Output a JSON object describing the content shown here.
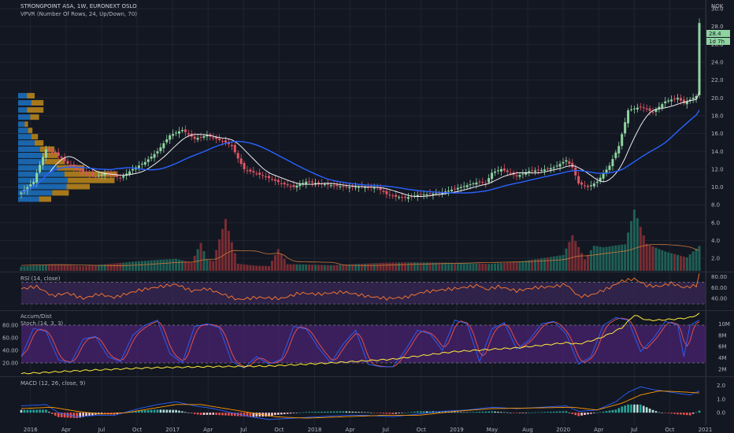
{
  "header": {
    "symbol": "STRONGPOINT ASA, 1W, EURONEXT OSLO",
    "vpvr": "VPVR (Number Of Rows, 24, Up/Down, 70)",
    "currency": "NOK",
    "last_price": "28.4",
    "countdown": "1d 7h"
  },
  "panes": {
    "rsi_title": "RSI (14, close)",
    "accum_title": "Accum/Dist",
    "stoch_title": "Stoch (14, 3, 3)",
    "macd_title": "MACD (12, 26, close, 9)"
  },
  "colors": {
    "background": "#131722",
    "up": "#26a69a",
    "down": "#ef5350",
    "up_candle": "#8fd4a0",
    "down_candle": "#e05565",
    "sma_fast": "#ffffff",
    "sma_slow": "#2962ff",
    "rsi_line": "#ff7a2e",
    "rsi_band": "#3c2a5a",
    "stoch_k": "#2962ff",
    "stoch_d": "#ef5350",
    "stoch_band": "#4a2370",
    "accum": "#ffeb3b",
    "macd_line": "#2962ff",
    "signal_line": "#ff9800",
    "vpvr_up": "#1e88e5",
    "vpvr_down": "#e6a21a"
  },
  "chart_data": [
    {
      "type": "candlestick",
      "pane": "price",
      "title": "STRONGPOINT ASA, 1W, EURONEXT OSLO",
      "x_ticks": [
        "2016",
        "Apr",
        "Jul",
        "Oct",
        "2017",
        "Apr",
        "Jul",
        "Oct",
        "2018",
        "Apr",
        "Jul",
        "Oct",
        "2019",
        "May",
        "Aug",
        "2020",
        "Apr",
        "Jul",
        "Oct",
        "2021"
      ],
      "y_ticks": [
        2.0,
        4.0,
        6.0,
        8.0,
        10.0,
        12.0,
        14.0,
        16.0,
        18.0,
        20.0,
        22.0,
        24.0,
        26.0,
        28.0,
        30.0
      ],
      "ylim": [
        0.6,
        30.8
      ],
      "close_anchors": [
        [
          0,
          9.4
        ],
        [
          4,
          10.6
        ],
        [
          6,
          12.5
        ],
        [
          8,
          14.2
        ],
        [
          11,
          13.8
        ],
        [
          15,
          12.6
        ],
        [
          19,
          11.8
        ],
        [
          24,
          11.2
        ],
        [
          28,
          11.6
        ],
        [
          32,
          11.0
        ],
        [
          36,
          12.0
        ],
        [
          40,
          12.8
        ],
        [
          44,
          14.0
        ],
        [
          48,
          15.8
        ],
        [
          52,
          16.4
        ],
        [
          56,
          15.4
        ],
        [
          60,
          15.8
        ],
        [
          63,
          15.4
        ],
        [
          66,
          15.0
        ],
        [
          68,
          14.6
        ],
        [
          70,
          13.2
        ],
        [
          72,
          12.0
        ],
        [
          76,
          11.5
        ],
        [
          80,
          11.0
        ],
        [
          84,
          10.4
        ],
        [
          88,
          10.0
        ],
        [
          92,
          10.6
        ],
        [
          96,
          10.4
        ],
        [
          100,
          10.2
        ],
        [
          105,
          10.0
        ],
        [
          110,
          10.0
        ],
        [
          115,
          9.9
        ],
        [
          118,
          9.2
        ],
        [
          121,
          8.9
        ],
        [
          124,
          8.8
        ],
        [
          128,
          9.1
        ],
        [
          132,
          9.2
        ],
        [
          136,
          9.4
        ],
        [
          140,
          9.8
        ],
        [
          144,
          10.2
        ],
        [
          148,
          10.6
        ],
        [
          150,
          10.4
        ],
        [
          152,
          11.6
        ],
        [
          155,
          12.0
        ],
        [
          160,
          11.2
        ],
        [
          164,
          11.8
        ],
        [
          168,
          11.9
        ],
        [
          172,
          12.2
        ],
        [
          176,
          13.0
        ],
        [
          178,
          12.2
        ],
        [
          180,
          10.4
        ],
        [
          183,
          10.0
        ],
        [
          186,
          10.6
        ],
        [
          190,
          12.4
        ],
        [
          193,
          14.6
        ],
        [
          196,
          18.6
        ],
        [
          200,
          19.0
        ],
        [
          204,
          18.4
        ],
        [
          208,
          19.6
        ],
        [
          212,
          20.0
        ],
        [
          214,
          19.4
        ],
        [
          216,
          19.8
        ],
        [
          218,
          20.2
        ],
        [
          219,
          28.4
        ]
      ],
      "volume_anchors": [
        [
          0,
          0.8
        ],
        [
          10,
          1.0
        ],
        [
          20,
          0.6
        ],
        [
          30,
          0.9
        ],
        [
          40,
          1.2
        ],
        [
          50,
          1.5
        ],
        [
          55,
          1.1
        ],
        [
          58,
          3.8
        ],
        [
          60,
          1.6
        ],
        [
          62,
          1.4
        ],
        [
          66,
          8.0
        ],
        [
          70,
          1.2
        ],
        [
          80,
          0.8
        ],
        [
          83,
          3.5
        ],
        [
          86,
          1.0
        ],
        [
          100,
          0.7
        ],
        [
          120,
          1.0
        ],
        [
          140,
          1.2
        ],
        [
          160,
          1.4
        ],
        [
          175,
          2.0
        ],
        [
          178,
          4.4
        ],
        [
          182,
          1.4
        ],
        [
          185,
          3.0
        ],
        [
          188,
          2.8
        ],
        [
          195,
          3.2
        ],
        [
          198,
          7.5
        ],
        [
          202,
          3.4
        ],
        [
          208,
          2.6
        ],
        [
          215,
          2.0
        ],
        [
          219,
          4.0
        ]
      ],
      "volume_scale_max": 12.0,
      "vpvr_levels": [
        {
          "price": 8.6,
          "up": 38,
          "down": 22
        },
        {
          "price": 9.3,
          "up": 62,
          "down": 30
        },
        {
          "price": 10.0,
          "up": 88,
          "down": 42
        },
        {
          "price": 10.7,
          "up": 90,
          "down": 85
        },
        {
          "price": 11.4,
          "up": 84,
          "down": 95
        },
        {
          "price": 12.1,
          "up": 70,
          "down": 50
        },
        {
          "price": 12.8,
          "up": 48,
          "down": 36
        },
        {
          "price": 13.5,
          "up": 44,
          "down": 28
        },
        {
          "price": 14.2,
          "up": 40,
          "down": 26
        },
        {
          "price": 14.9,
          "up": 30,
          "down": 16
        },
        {
          "price": 15.6,
          "up": 24,
          "down": 12
        },
        {
          "price": 16.3,
          "up": 18,
          "down": 8
        },
        {
          "price": 17.0,
          "up": 12,
          "down": 6
        },
        {
          "price": 17.8,
          "up": 22,
          "down": 16
        },
        {
          "price": 18.6,
          "up": 16,
          "down": 30
        },
        {
          "price": 19.4,
          "up": 24,
          "down": 22
        },
        {
          "price": 20.2,
          "up": 16,
          "down": 14
        }
      ]
    },
    {
      "type": "line",
      "pane": "rsi",
      "title": "RSI (14, close)",
      "y_ticks": [
        40.0,
        60.0,
        80.0
      ],
      "ylim": [
        20,
        85
      ],
      "bands": [
        30,
        70
      ],
      "anchors": [
        [
          0,
          58
        ],
        [
          5,
          62
        ],
        [
          10,
          45
        ],
        [
          15,
          50
        ],
        [
          20,
          40
        ],
        [
          25,
          48
        ],
        [
          30,
          42
        ],
        [
          38,
          55
        ],
        [
          45,
          62
        ],
        [
          50,
          66
        ],
        [
          55,
          54
        ],
        [
          60,
          58
        ],
        [
          66,
          46
        ],
        [
          70,
          38
        ],
        [
          76,
          42
        ],
        [
          84,
          40
        ],
        [
          90,
          50
        ],
        [
          96,
          48
        ],
        [
          104,
          52
        ],
        [
          112,
          44
        ],
        [
          118,
          40
        ],
        [
          124,
          42
        ],
        [
          130,
          52
        ],
        [
          136,
          56
        ],
        [
          140,
          58
        ],
        [
          148,
          64
        ],
        [
          150,
          56
        ],
        [
          154,
          62
        ],
        [
          160,
          54
        ],
        [
          166,
          60
        ],
        [
          172,
          62
        ],
        [
          176,
          66
        ],
        [
          180,
          44
        ],
        [
          184,
          46
        ],
        [
          190,
          60
        ],
        [
          194,
          72
        ],
        [
          198,
          76
        ],
        [
          202,
          64
        ],
        [
          206,
          62
        ],
        [
          210,
          68
        ],
        [
          214,
          60
        ],
        [
          218,
          64
        ],
        [
          219,
          84
        ]
      ]
    },
    {
      "type": "line",
      "pane": "stoch",
      "title": "Stoch (14, 3, 3)",
      "y_ticks": [
        20.0,
        40.0,
        60.0,
        80.0
      ],
      "ylim": [
        0,
        100
      ],
      "bands": [
        20,
        80
      ],
      "k_anchors": [
        [
          0,
          30
        ],
        [
          4,
          75
        ],
        [
          8,
          70
        ],
        [
          12,
          25
        ],
        [
          16,
          20
        ],
        [
          20,
          58
        ],
        [
          24,
          62
        ],
        [
          28,
          30
        ],
        [
          32,
          22
        ],
        [
          36,
          64
        ],
        [
          40,
          80
        ],
        [
          44,
          88
        ],
        [
          48,
          35
        ],
        [
          52,
          20
        ],
        [
          56,
          78
        ],
        [
          60,
          82
        ],
        [
          64,
          76
        ],
        [
          68,
          22
        ],
        [
          72,
          12
        ],
        [
          76,
          30
        ],
        [
          80,
          18
        ],
        [
          84,
          26
        ],
        [
          88,
          78
        ],
        [
          92,
          74
        ],
        [
          96,
          44
        ],
        [
          100,
          20
        ],
        [
          104,
          50
        ],
        [
          108,
          72
        ],
        [
          112,
          18
        ],
        [
          116,
          14
        ],
        [
          120,
          14
        ],
        [
          124,
          40
        ],
        [
          128,
          72
        ],
        [
          132,
          66
        ],
        [
          136,
          40
        ],
        [
          140,
          88
        ],
        [
          144,
          82
        ],
        [
          148,
          22
        ],
        [
          152,
          74
        ],
        [
          156,
          84
        ],
        [
          160,
          42
        ],
        [
          164,
          56
        ],
        [
          168,
          82
        ],
        [
          172,
          86
        ],
        [
          176,
          66
        ],
        [
          180,
          18
        ],
        [
          184,
          30
        ],
        [
          188,
          80
        ],
        [
          192,
          92
        ],
        [
          196,
          88
        ],
        [
          200,
          38
        ],
        [
          204,
          58
        ],
        [
          208,
          86
        ],
        [
          212,
          80
        ],
        [
          214,
          30
        ],
        [
          216,
          80
        ],
        [
          219,
          88
        ]
      ],
      "accum_anchors": [
        [
          0,
          3
        ],
        [
          20,
          8
        ],
        [
          40,
          12
        ],
        [
          60,
          14
        ],
        [
          80,
          15
        ],
        [
          100,
          20
        ],
        [
          120,
          26
        ],
        [
          140,
          38
        ],
        [
          160,
          44
        ],
        [
          176,
          52
        ],
        [
          180,
          50
        ],
        [
          186,
          58
        ],
        [
          190,
          66
        ],
        [
          194,
          76
        ],
        [
          198,
          96
        ],
        [
          202,
          88
        ],
        [
          206,
          88
        ],
        [
          212,
          90
        ],
        [
          216,
          92
        ],
        [
          219,
          98
        ]
      ],
      "accum_ticks": [
        "2M",
        "4M",
        "6M",
        "8M",
        "10M"
      ]
    },
    {
      "type": "bar",
      "pane": "macd",
      "title": "MACD (12, 26, close, 9)",
      "y_ticks": [
        0.0,
        1.0,
        2.0
      ],
      "ylim": [
        -0.8,
        2.5
      ],
      "macd_anchors": [
        [
          0,
          0.5
        ],
        [
          8,
          0.6
        ],
        [
          12,
          0.0
        ],
        [
          18,
          -0.3
        ],
        [
          24,
          -0.2
        ],
        [
          30,
          -0.2
        ],
        [
          38,
          0.3
        ],
        [
          44,
          0.6
        ],
        [
          50,
          0.8
        ],
        [
          56,
          0.5
        ],
        [
          62,
          0.3
        ],
        [
          68,
          0.0
        ],
        [
          74,
          -0.3
        ],
        [
          80,
          -0.5
        ],
        [
          88,
          -0.4
        ],
        [
          96,
          -0.3
        ],
        [
          104,
          -0.2
        ],
        [
          112,
          -0.2
        ],
        [
          120,
          -0.3
        ],
        [
          128,
          -0.1
        ],
        [
          136,
          0.1
        ],
        [
          144,
          0.2
        ],
        [
          152,
          0.4
        ],
        [
          160,
          0.3
        ],
        [
          168,
          0.4
        ],
        [
          176,
          0.5
        ],
        [
          180,
          0.1
        ],
        [
          186,
          0.2
        ],
        [
          192,
          0.8
        ],
        [
          196,
          1.5
        ],
        [
          200,
          1.9
        ],
        [
          204,
          1.7
        ],
        [
          210,
          1.5
        ],
        [
          216,
          1.3
        ],
        [
          219,
          1.6
        ]
      ],
      "signal_anchors": [
        [
          0,
          0.3
        ],
        [
          10,
          0.4
        ],
        [
          18,
          0.1
        ],
        [
          26,
          -0.1
        ],
        [
          34,
          0.0
        ],
        [
          42,
          0.3
        ],
        [
          50,
          0.6
        ],
        [
          58,
          0.6
        ],
        [
          66,
          0.3
        ],
        [
          74,
          0.0
        ],
        [
          82,
          -0.3
        ],
        [
          92,
          -0.4
        ],
        [
          104,
          -0.3
        ],
        [
          116,
          -0.2
        ],
        [
          128,
          -0.2
        ],
        [
          140,
          0.1
        ],
        [
          152,
          0.3
        ],
        [
          166,
          0.35
        ],
        [
          178,
          0.4
        ],
        [
          186,
          0.2
        ],
        [
          194,
          0.7
        ],
        [
          200,
          1.3
        ],
        [
          206,
          1.6
        ],
        [
          212,
          1.55
        ],
        [
          219,
          1.45
        ]
      ]
    }
  ]
}
